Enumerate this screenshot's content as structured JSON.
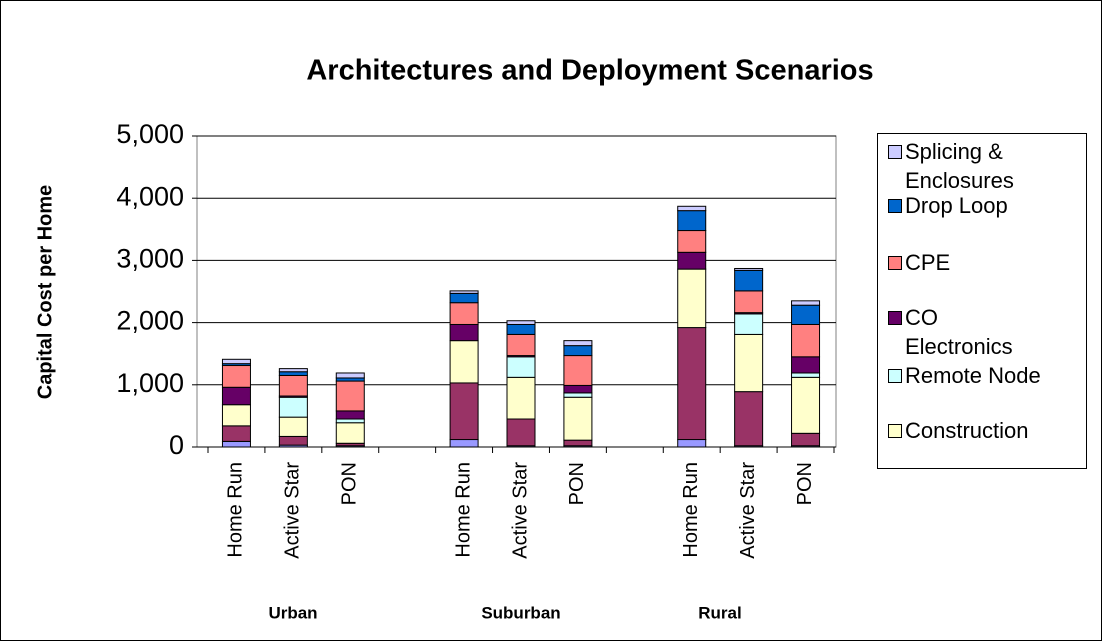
{
  "chart_data": {
    "type": "stacked_bar",
    "title": "Architectures and Deployment Scenarios",
    "y_label": "Capital Cost per Home",
    "categories": [
      "Home Run",
      "Active Star",
      "PON",
      null,
      "Home Run",
      "Active Star",
      "PON",
      null,
      "Home Run",
      "Active Star",
      "PON"
    ],
    "group_labels": [
      "Urban",
      "Suburban",
      "Rural"
    ],
    "ylim": [
      0,
      5000
    ],
    "yticks": [
      0,
      {
        "value": 1000,
        "label": "1,000"
      },
      {
        "value": 2000,
        "label": "2,000"
      },
      {
        "value": 3000,
        "label": "3,000"
      },
      {
        "value": 4000,
        "label": "4,000"
      },
      {
        "value": 5000,
        "label": "5,000"
      }
    ],
    "grid": true,
    "legend": "right",
    "series": [
      {
        "color": "#9999ff",
        "values": [
          90,
          30,
          20,
          null,
          120,
          20,
          20,
          null,
          120,
          20,
          20
        ]
      },
      {
        "color": "#993366",
        "values": [
          250,
          140,
          40,
          null,
          910,
          430,
          90,
          null,
          1800,
          870,
          200
        ]
      },
      {
        "name": "Construction",
        "color": "#ffffcc",
        "values": [
          340,
          310,
          330,
          null,
          680,
          670,
          690,
          null,
          940,
          920,
          900
        ]
      },
      {
        "name": "Remote Node",
        "color": "#ccffff",
        "values": [
          0,
          320,
          60,
          null,
          0,
          330,
          70,
          null,
          0,
          330,
          70
        ]
      },
      {
        "name": "CO Electronics",
        "color": "#660066",
        "values": [
          280,
          20,
          130,
          null,
          260,
          20,
          120,
          null,
          270,
          20,
          260
        ]
      },
      {
        "name": "CPE",
        "color": "#ff8080",
        "values": [
          350,
          330,
          480,
          null,
          350,
          340,
          480,
          null,
          350,
          350,
          520
        ]
      },
      {
        "name": "Drop Loop",
        "color": "#0066cc",
        "values": [
          30,
          60,
          50,
          null,
          150,
          160,
          160,
          null,
          320,
          330,
          310
        ]
      },
      {
        "name": "Splicing & Enclosures",
        "color": "#ccccff",
        "values": [
          70,
          50,
          80,
          null,
          40,
          60,
          80,
          null,
          70,
          30,
          70
        ]
      }
    ]
  }
}
